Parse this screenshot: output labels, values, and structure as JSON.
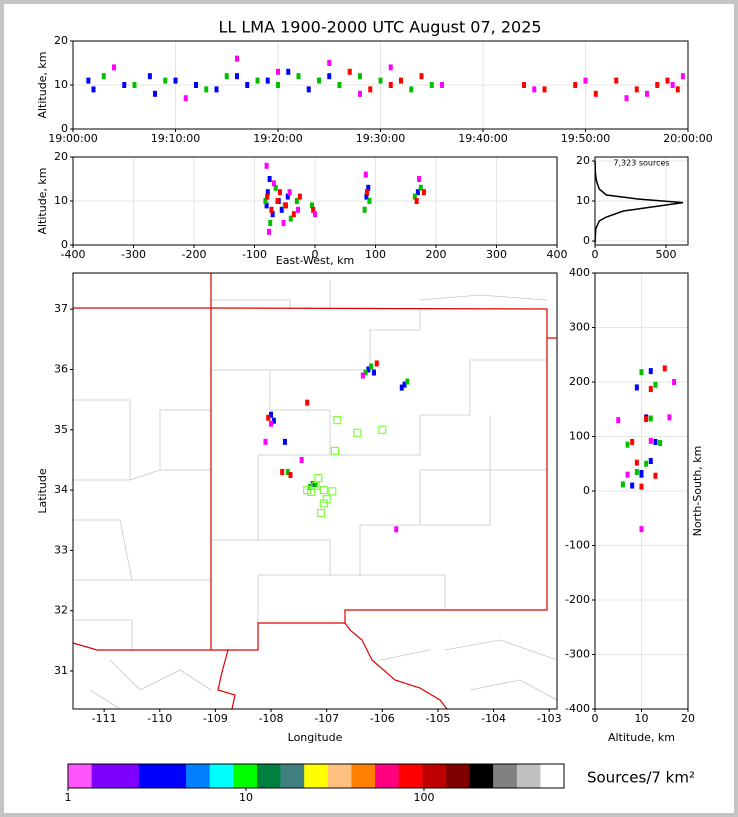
{
  "chart_data": [
    {
      "type": "scatter",
      "title": "LL LMA 1900-2000 UTC August 07, 2025",
      "ylabel": "Altitude, km",
      "xlim": [
        0,
        60
      ],
      "xticks": [
        {
          "value": 0,
          "label": "19:00:00"
        },
        {
          "value": 10,
          "label": "19:10:00"
        },
        {
          "value": 20,
          "label": "19:20:00"
        },
        {
          "value": 30,
          "label": "19:30:00"
        },
        {
          "value": 40,
          "label": "19:40:00"
        },
        {
          "value": 50,
          "label": "19:50:00"
        },
        {
          "value": 60,
          "label": "20:00:00"
        }
      ],
      "ylim": [
        0,
        20
      ],
      "yticks": [
        0,
        10,
        20
      ],
      "grid": true,
      "series": [
        {
          "color": "#0000ff",
          "x": [
            1.5,
            2,
            5,
            7.5,
            8,
            10,
            12,
            14,
            16,
            17,
            19,
            21,
            23,
            25
          ],
          "y": [
            11,
            9,
            10,
            12,
            8,
            11,
            10,
            9,
            12,
            10,
            11,
            13,
            9,
            12
          ]
        },
        {
          "color": "#00c000",
          "x": [
            3,
            6,
            9,
            13,
            15,
            18,
            20,
            22,
            24,
            26,
            28,
            30,
            33,
            35
          ],
          "y": [
            12,
            10,
            11,
            9,
            12,
            11,
            10,
            12,
            11,
            10,
            12,
            11,
            9,
            10
          ]
        },
        {
          "color": "#ff0000",
          "x": [
            27,
            29,
            31,
            32,
            34,
            44,
            46,
            49,
            51,
            53,
            55,
            57,
            58,
            59
          ],
          "y": [
            13,
            9,
            10,
            11,
            12,
            10,
            9,
            10,
            8,
            11,
            9,
            10,
            11,
            9
          ]
        },
        {
          "color": "#ff00ff",
          "x": [
            4,
            11,
            16,
            20,
            25,
            28,
            31,
            36,
            45,
            50,
            54,
            56,
            58.5,
            59.5
          ],
          "y": [
            14,
            7,
            16,
            13,
            15,
            8,
            14,
            10,
            9,
            11,
            7,
            8,
            10,
            12
          ]
        }
      ]
    },
    {
      "type": "scatter",
      "xlabel": "East-West, km",
      "ylabel": "Altitude, km",
      "xlim": [
        -400,
        400
      ],
      "xticks": [
        -400,
        -300,
        -200,
        -100,
        0,
        100,
        200,
        300,
        400
      ],
      "ylim": [
        0,
        20
      ],
      "yticks": [
        0,
        10,
        20
      ],
      "grid": true,
      "series": [
        {
          "color": "#0000ff",
          "x": [
            -80,
            -78,
            -75,
            -70,
            -60,
            -55,
            -45,
            85,
            88,
            170
          ],
          "y": [
            9,
            12,
            15,
            7,
            10,
            8,
            11,
            11,
            13,
            12
          ]
        },
        {
          "color": "#00c000",
          "x": [
            -82,
            -74,
            -65,
            -50,
            -40,
            -30,
            -5,
            82,
            90,
            165,
            175
          ],
          "y": [
            10,
            5,
            13,
            9,
            6,
            10,
            9,
            8,
            10,
            11,
            13
          ]
        },
        {
          "color": "#ff0000",
          "x": [
            -79,
            -72,
            -62,
            -58,
            -48,
            -35,
            -25,
            -3,
            86,
            168,
            180
          ],
          "y": [
            11,
            8,
            10,
            12,
            9,
            7,
            11,
            8,
            12,
            10,
            12
          ]
        },
        {
          "color": "#ff00ff",
          "x": [
            -80,
            -76,
            -68,
            -52,
            -42,
            -28,
            0,
            84,
            172
          ],
          "y": [
            18,
            3,
            14,
            5,
            12,
            8,
            7,
            16,
            15
          ]
        }
      ]
    },
    {
      "type": "line",
      "annotation": "7,323 sources",
      "xlim": [
        0,
        655
      ],
      "xticks": [
        0,
        500
      ],
      "ylim": [
        -1,
        21
      ],
      "yticks": [
        0,
        10,
        20
      ],
      "grid": true,
      "series": [
        {
          "color": "#000000",
          "x": [
            0,
            5,
            30,
            80,
            200,
            400,
            620,
            300,
            80,
            30,
            15,
            8,
            3,
            0
          ],
          "y": [
            -0.5,
            3,
            5,
            6,
            7.5,
            8.5,
            9.6,
            10.5,
            11.5,
            13,
            14.5,
            15.5,
            17,
            20
          ]
        }
      ]
    },
    {
      "type": "scatter",
      "xlabel": "Longitude",
      "ylabel": "Latitude",
      "xlim": [
        -111.56,
        -102.86
      ],
      "xticks": [
        -111,
        -110,
        -109,
        -108,
        -107,
        -106,
        -105,
        -104,
        -103
      ],
      "ylim": [
        30.37,
        37.6
      ],
      "yticks": [
        31,
        32,
        33,
        34,
        35,
        36,
        37
      ],
      "grid": false,
      "series": [
        {
          "color": "#0000ff",
          "x": [
            -108.0,
            -107.95,
            -107.75,
            -107.25,
            -106.25,
            -106.15,
            -105.6,
            -105.65
          ],
          "y": [
            35.25,
            35.15,
            34.8,
            34.1,
            36.0,
            35.95,
            35.75,
            35.7
          ]
        },
        {
          "color": "#00c000",
          "x": [
            -107.7,
            -107.3,
            -106.2,
            -105.55,
            -107.2,
            -106.3
          ],
          "y": [
            34.3,
            34.05,
            36.05,
            35.8,
            34.1,
            35.95
          ]
        },
        {
          "color": "#ff0000",
          "x": [
            -107.8,
            -107.65,
            -106.1,
            -108.05,
            -107.35
          ],
          "y": [
            34.3,
            34.25,
            36.1,
            35.2,
            35.45
          ]
        },
        {
          "color": "#ff00ff",
          "x": [
            -108.0,
            -107.45,
            -106.35,
            -105.75,
            -108.1
          ],
          "y": [
            35.1,
            34.5,
            35.9,
            33.35,
            34.8
          ]
        },
        {
          "color": "#80ff40",
          "marker": "square-open",
          "x": [
            -106.81,
            -106.45,
            -106.0,
            -106.85,
            -107.15,
            -107.35,
            -107.05,
            -107.2,
            -106.9,
            -107.0,
            -107.28,
            -107.1,
            -107.05
          ],
          "y": [
            35.16,
            34.95,
            35.0,
            34.65,
            34.2,
            34.0,
            34.0,
            34.07,
            33.98,
            33.85,
            33.97,
            33.62,
            33.78
          ]
        }
      ]
    },
    {
      "type": "scatter",
      "xlabel": "Altitude, km",
      "ylabel": "North-South, km",
      "xlim": [
        0,
        20
      ],
      "xticks": [
        0,
        10,
        20
      ],
      "ylim": [
        -400,
        400
      ],
      "yticks": [
        -400,
        -300,
        -200,
        -100,
        0,
        100,
        200,
        300,
        400
      ],
      "grid": true,
      "series": [
        {
          "color": "#0000ff",
          "x": [
            8,
            10,
            12,
            13,
            11,
            9,
            12,
            10
          ],
          "y": [
            10,
            30,
            55,
            90,
            135,
            190,
            220,
            33
          ]
        },
        {
          "color": "#00c000",
          "x": [
            6,
            9,
            11,
            14,
            12,
            10,
            7,
            13
          ],
          "y": [
            12,
            35,
            50,
            88,
            133,
            218,
            85,
            195
          ]
        },
        {
          "color": "#ff0000",
          "x": [
            10,
            13,
            8,
            11,
            15,
            12,
            9
          ],
          "y": [
            8,
            28,
            90,
            132,
            225,
            187,
            52
          ]
        },
        {
          "color": "#ff00ff",
          "x": [
            7,
            12,
            16,
            5,
            17,
            10
          ],
          "y": [
            30,
            92,
            135,
            130,
            200,
            -70
          ]
        }
      ]
    },
    {
      "type": "colorbar",
      "label": "Sources/7 km²",
      "log": true,
      "xlim": [
        1,
        612
      ],
      "xticks": [
        1,
        10,
        100
      ],
      "colors": [
        "#ff55ff",
        "#8000ff",
        "#8000ff",
        "#0000ff",
        "#0000ff",
        "#0080ff",
        "#00ffff",
        "#00ff00",
        "#008040",
        "#408080",
        "#ffff00",
        "#ffc080",
        "#ff8000",
        "#ff0080",
        "#ff0000",
        "#c00000",
        "#800000",
        "#000000",
        "#808080",
        "#c0c0c0",
        "#ffffff"
      ]
    }
  ]
}
